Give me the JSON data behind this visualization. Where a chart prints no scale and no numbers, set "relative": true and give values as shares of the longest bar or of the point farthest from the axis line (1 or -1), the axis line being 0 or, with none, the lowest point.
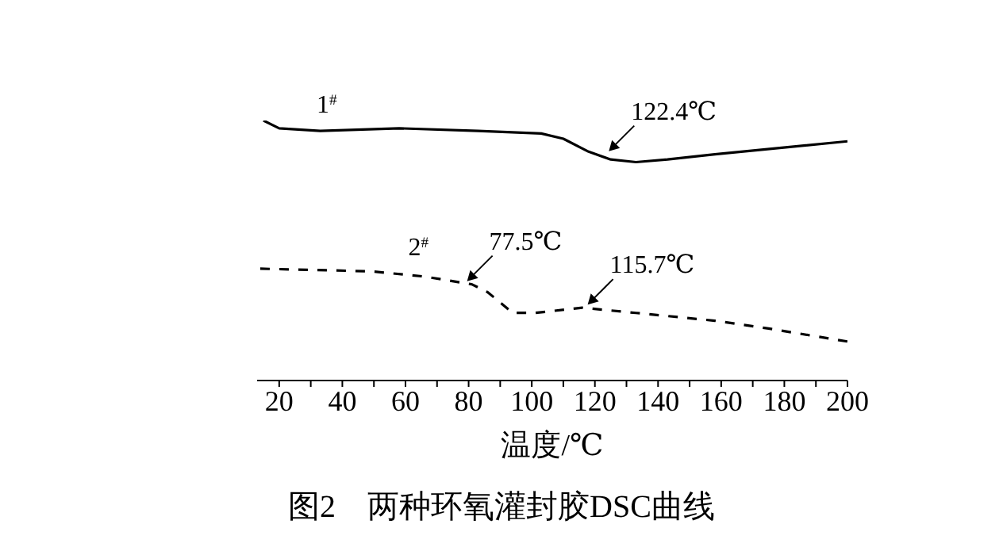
{
  "chart_data": {
    "type": "line",
    "title": "图2　两种环氧灌封胶DSC曲线",
    "xlabel": "温度/℃",
    "relative": true,
    "marker": "none",
    "xlim": [
      13,
      200
    ],
    "xticks": [
      20,
      {
        "value": 30,
        "label": null
      },
      40,
      {
        "value": 50,
        "label": null
      },
      60,
      {
        "value": 70,
        "label": null
      },
      80,
      {
        "value": 90,
        "label": null
      },
      100,
      {
        "value": 110,
        "label": null
      },
      120,
      {
        "value": 130,
        "label": null
      },
      140,
      {
        "value": 150,
        "label": null
      },
      160,
      {
        "value": 170,
        "label": null
      },
      180,
      {
        "value": 190,
        "label": null
      },
      200
    ],
    "series": [
      {
        "name": "1$^{#}$",
        "color": "#000000",
        "line_style": "solid",
        "x": [
          15,
          20,
          33,
          58,
          83,
          103,
          110,
          118,
          125,
          133,
          143,
          158,
          183,
          200
        ],
        "values": [
          1.0,
          0.97,
          0.96,
          0.97,
          0.96,
          0.95,
          0.93,
          0.88,
          0.85,
          0.84,
          0.85,
          0.87,
          0.9,
          0.92
        ]
      },
      {
        "name": "2$^{#}$",
        "color": "#000000",
        "line_style": "dashed",
        "x": [
          14,
          49,
          66,
          81,
          86,
          94,
          101,
          116,
          133,
          158,
          175,
          200
        ],
        "values": [
          0.43,
          0.42,
          0.4,
          0.37,
          0.34,
          0.26,
          0.26,
          0.28,
          0.26,
          0.23,
          0.2,
          0.15
        ]
      }
    ],
    "annotations": [
      {
        "text": "122.4℃",
        "x": 122.4,
        "y": 0.87
      },
      {
        "text": "77.5℃",
        "x": 77.5,
        "y": 0.37
      },
      {
        "text": "115.7℃",
        "x": 115.7,
        "y": 0.28
      }
    ]
  }
}
